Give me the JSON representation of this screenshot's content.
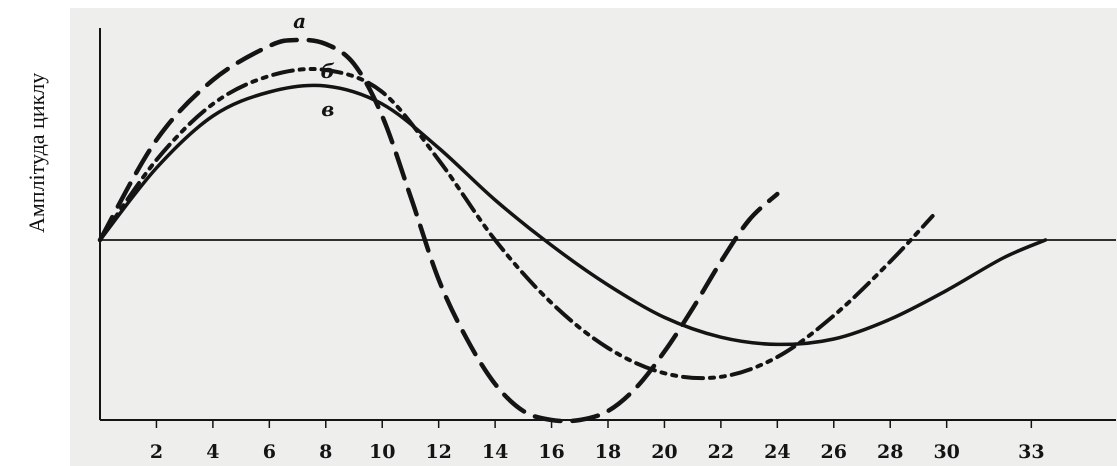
{
  "chart_data": {
    "type": "line",
    "ylabel": "Амплітуда циклу",
    "xlabel": "",
    "title": "",
    "xlim": [
      0,
      36
    ],
    "ylim": [
      -1.05,
      1.0
    ],
    "grid": false,
    "x_ticks": [
      "2",
      "4",
      "6",
      "8",
      "10",
      "12",
      "14",
      "16",
      "18",
      "20",
      "22",
      "24",
      "26",
      "28",
      "30",
      "33"
    ],
    "x_tick_values": [
      2,
      4,
      6,
      8,
      10,
      12,
      14,
      16,
      18,
      20,
      22,
      24,
      26,
      28,
      30,
      33
    ],
    "series": [
      {
        "name": "а",
        "style": "dashed",
        "x": [
          0,
          2,
          4,
          6,
          7,
          8,
          9,
          10,
          11,
          12,
          13,
          14,
          15,
          16,
          17,
          18,
          19,
          20,
          21,
          22,
          23,
          24
        ],
        "y": [
          0.0,
          0.5,
          0.8,
          0.97,
          1.0,
          0.98,
          0.88,
          0.62,
          0.22,
          -0.22,
          -0.55,
          -0.8,
          -0.95,
          -1.0,
          -1.0,
          -0.95,
          -0.82,
          -0.62,
          -0.38,
          -0.12,
          0.1,
          0.23
        ]
      },
      {
        "name": "б",
        "style": "dash-dot-dot",
        "x": [
          0,
          2,
          4,
          6,
          8,
          10,
          12,
          14,
          16,
          18,
          20,
          22,
          24,
          26,
          28,
          29.5
        ],
        "y": [
          0.0,
          0.4,
          0.68,
          0.82,
          0.85,
          0.74,
          0.4,
          0.0,
          -0.35,
          -0.6,
          -0.74,
          -0.76,
          -0.65,
          -0.42,
          -0.12,
          0.12
        ]
      },
      {
        "name": "в",
        "style": "solid",
        "x": [
          0,
          2,
          4,
          6,
          8,
          10,
          12,
          14,
          16,
          18,
          20,
          22,
          24,
          26,
          28,
          30,
          32,
          33.5
        ],
        "y": [
          0.0,
          0.36,
          0.62,
          0.74,
          0.77,
          0.68,
          0.46,
          0.2,
          -0.03,
          -0.25,
          -0.43,
          -0.54,
          -0.58,
          -0.55,
          -0.44,
          -0.28,
          -0.1,
          0.0
        ]
      }
    ],
    "colors": {
      "ink": "#141414",
      "background": "#eeeeed"
    }
  }
}
